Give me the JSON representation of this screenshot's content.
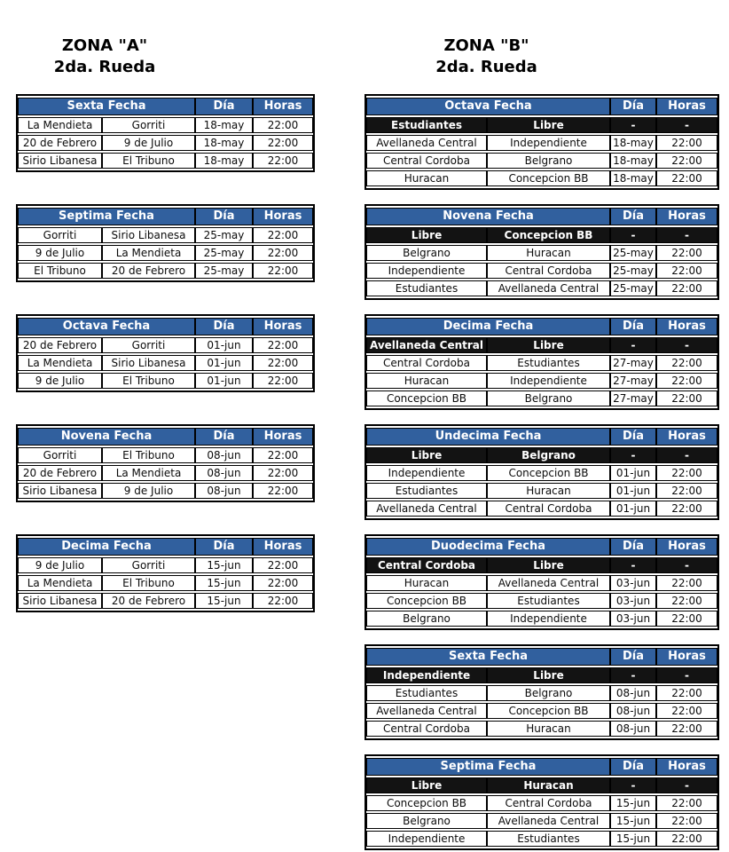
{
  "labels": {
    "dia": "Día",
    "horas": "Horas"
  },
  "colors": {
    "header_blue": "#31609E",
    "libre_row_black": "#131313",
    "border_black": "#000000"
  },
  "zones": [
    {
      "id": "a",
      "title": "ZONA \"A\"",
      "subtitle": "2da. Rueda",
      "tables": [
        {
          "name": "Sexta Fecha",
          "rows": [
            {
              "home": "La Mendieta",
              "away": "Gorriti",
              "dia": "18-may",
              "horas": "22:00",
              "libre": false
            },
            {
              "home": "20 de Febrero",
              "away": "9 de Julio",
              "dia": "18-may",
              "horas": "22:00",
              "libre": false
            },
            {
              "home": "Sirio Libanesa",
              "away": "El Tribuno",
              "dia": "18-may",
              "horas": "22:00",
              "libre": false
            }
          ]
        },
        {
          "name": "Septima Fecha",
          "rows": [
            {
              "home": "Gorriti",
              "away": "Sirio Libanesa",
              "dia": "25-may",
              "horas": "22:00",
              "libre": false
            },
            {
              "home": "9 de Julio",
              "away": "La Mendieta",
              "dia": "25-may",
              "horas": "22:00",
              "libre": false
            },
            {
              "home": "El Tribuno",
              "away": "20 de Febrero",
              "dia": "25-may",
              "horas": "22:00",
              "libre": false
            }
          ]
        },
        {
          "name": "Octava Fecha",
          "rows": [
            {
              "home": "20 de Febrero",
              "away": "Gorriti",
              "dia": "01-jun",
              "horas": "22:00",
              "libre": false
            },
            {
              "home": "La Mendieta",
              "away": "Sirio Libanesa",
              "dia": "01-jun",
              "horas": "22:00",
              "libre": false
            },
            {
              "home": "9 de Julio",
              "away": "El Tribuno",
              "dia": "01-jun",
              "horas": "22:00",
              "libre": false
            }
          ]
        },
        {
          "name": "Novena Fecha",
          "rows": [
            {
              "home": "Gorriti",
              "away": "El Tribuno",
              "dia": "08-jun",
              "horas": "22:00",
              "libre": false
            },
            {
              "home": "20 de Febrero",
              "away": "La Mendieta",
              "dia": "08-jun",
              "horas": "22:00",
              "libre": false
            },
            {
              "home": "Sirio Libanesa",
              "away": "9 de Julio",
              "dia": "08-jun",
              "horas": "22:00",
              "libre": false
            }
          ]
        },
        {
          "name": "Decima Fecha",
          "rows": [
            {
              "home": "9 de Julio",
              "away": "Gorriti",
              "dia": "15-jun",
              "horas": "22:00",
              "libre": false
            },
            {
              "home": "La Mendieta",
              "away": "El Tribuno",
              "dia": "15-jun",
              "horas": "22:00",
              "libre": false
            },
            {
              "home": "Sirio Libanesa",
              "away": "20 de Febrero",
              "dia": "15-jun",
              "horas": "22:00",
              "libre": false
            }
          ]
        }
      ]
    },
    {
      "id": "b",
      "title": "ZONA \"B\"",
      "subtitle": "2da. Rueda",
      "tables": [
        {
          "name": "Octava Fecha",
          "rows": [
            {
              "home": "Estudiantes",
              "away": "Libre",
              "dia": "-",
              "horas": "-",
              "libre": true
            },
            {
              "home": "Avellaneda Central",
              "away": "Independiente",
              "dia": "18-may",
              "horas": "22:00",
              "libre": false
            },
            {
              "home": "Central Cordoba",
              "away": "Belgrano",
              "dia": "18-may",
              "horas": "22:00",
              "libre": false
            },
            {
              "home": "Huracan",
              "away": "Concepcion BB",
              "dia": "18-may",
              "horas": "22:00",
              "libre": false
            }
          ]
        },
        {
          "name": "Novena Fecha",
          "rows": [
            {
              "home": "Libre",
              "away": "Concepcion BB",
              "dia": "-",
              "horas": "-",
              "libre": true
            },
            {
              "home": "Belgrano",
              "away": "Huracan",
              "dia": "25-may",
              "horas": "22:00",
              "libre": false
            },
            {
              "home": "Independiente",
              "away": "Central Cordoba",
              "dia": "25-may",
              "horas": "22:00",
              "libre": false
            },
            {
              "home": "Estudiantes",
              "away": "Avellaneda Central",
              "dia": "25-may",
              "horas": "22:00",
              "libre": false
            }
          ]
        },
        {
          "name": "Decima Fecha",
          "rows": [
            {
              "home": "Avellaneda Central",
              "away": "Libre",
              "dia": "-",
              "horas": "-",
              "libre": true
            },
            {
              "home": "Central Cordoba",
              "away": "Estudiantes",
              "dia": "27-may",
              "horas": "22:00",
              "libre": false
            },
            {
              "home": "Huracan",
              "away": "Independiente",
              "dia": "27-may",
              "horas": "22:00",
              "libre": false
            },
            {
              "home": "Concepcion BB",
              "away": "Belgrano",
              "dia": "27-may",
              "horas": "22:00",
              "libre": false
            }
          ]
        },
        {
          "name": "Undecima Fecha",
          "rows": [
            {
              "home": "Libre",
              "away": "Belgrano",
              "dia": "-",
              "horas": "-",
              "libre": true
            },
            {
              "home": "Independiente",
              "away": "Concepcion BB",
              "dia": "01-jun",
              "horas": "22:00",
              "libre": false
            },
            {
              "home": "Estudiantes",
              "away": "Huracan",
              "dia": "01-jun",
              "horas": "22:00",
              "libre": false
            },
            {
              "home": "Avellaneda Central",
              "away": "Central Cordoba",
              "dia": "01-jun",
              "horas": "22:00",
              "libre": false
            }
          ]
        },
        {
          "name": "Duodecima Fecha",
          "rows": [
            {
              "home": "Central Cordoba",
              "away": "Libre",
              "dia": "-",
              "horas": "-",
              "libre": true
            },
            {
              "home": "Huracan",
              "away": "Avellaneda Central",
              "dia": "03-jun",
              "horas": "22:00",
              "libre": false
            },
            {
              "home": "Concepcion BB",
              "away": "Estudiantes",
              "dia": "03-jun",
              "horas": "22:00",
              "libre": false
            },
            {
              "home": "Belgrano",
              "away": "Independiente",
              "dia": "03-jun",
              "horas": "22:00",
              "libre": false
            }
          ]
        },
        {
          "name": "Sexta Fecha",
          "rows": [
            {
              "home": "Independiente",
              "away": "Libre",
              "dia": "-",
              "horas": "-",
              "libre": true
            },
            {
              "home": "Estudiantes",
              "away": "Belgrano",
              "dia": "08-jun",
              "horas": "22:00",
              "libre": false
            },
            {
              "home": "Avellaneda Central",
              "away": "Concepcion BB",
              "dia": "08-jun",
              "horas": "22:00",
              "libre": false
            },
            {
              "home": "Central Cordoba",
              "away": "Huracan",
              "dia": "08-jun",
              "horas": "22:00",
              "libre": false
            }
          ]
        },
        {
          "name": "Septima Fecha",
          "rows": [
            {
              "home": "Libre",
              "away": "Huracan",
              "dia": "-",
              "horas": "-",
              "libre": true
            },
            {
              "home": "Concepcion BB",
              "away": "Central Cordoba",
              "dia": "15-jun",
              "horas": "22:00",
              "libre": false
            },
            {
              "home": "Belgrano",
              "away": "Avellaneda Central",
              "dia": "15-jun",
              "horas": "22:00",
              "libre": false
            },
            {
              "home": "Independiente",
              "away": "Estudiantes",
              "dia": "15-jun",
              "horas": "22:00",
              "libre": false
            }
          ]
        }
      ]
    }
  ]
}
